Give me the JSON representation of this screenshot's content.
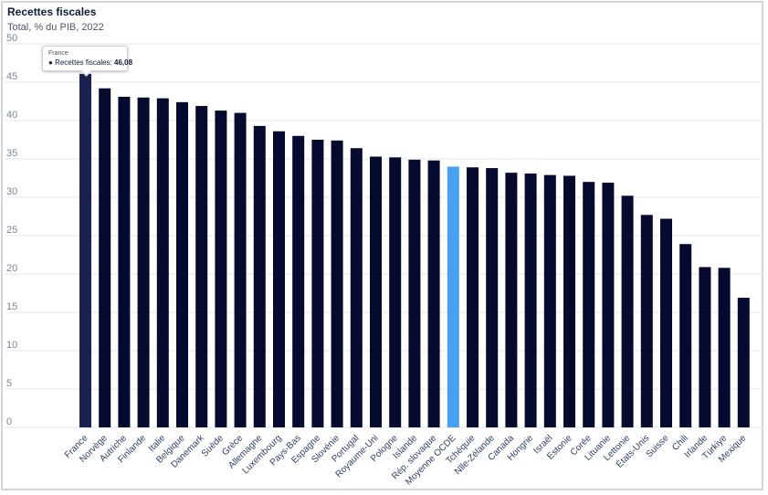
{
  "colors": {
    "bar": "#050a2e",
    "bar_highlight": "#1b2250",
    "bar_oecd": "#48a0f0",
    "grid": "#e3e6ea"
  },
  "tooltip": {
    "country": "France",
    "series_label": "Recettes fiscales:",
    "value": "46,08"
  },
  "chart_data": {
    "type": "bar",
    "title": "Recettes fiscales",
    "subtitle": "Total, % du PIB, 2022",
    "xlabel": "",
    "ylabel": "",
    "ylim": [
      0,
      50
    ],
    "yticks": [
      0,
      5,
      10,
      15,
      20,
      25,
      30,
      35,
      40,
      45,
      50
    ],
    "grid": true,
    "categories": [
      "France",
      "Norvège",
      "Autriche",
      "Finlande",
      "Italie",
      "Belgique",
      "Danemark",
      "Suède",
      "Grèce",
      "Allemagne",
      "Luxembourg",
      "Pays-Bas",
      "Espagne",
      "Slovénie",
      "Portugal",
      "Royaume-Uni",
      "Pologne",
      "Islande",
      "Rép. slovaque",
      "Moyenne OCDE",
      "Tchéquie",
      "Nlle-Zélande",
      "Canada",
      "Hongrie",
      "Israël",
      "Estonie",
      "Corée",
      "Lituanie",
      "Lettonie",
      "États-Unis",
      "Suisse",
      "Chili",
      "Irlande",
      "Türkiye",
      "Mexique"
    ],
    "values": [
      46.08,
      44.2,
      43.1,
      43.0,
      42.9,
      42.4,
      41.9,
      41.3,
      41.0,
      39.3,
      38.6,
      38.0,
      37.5,
      37.4,
      36.4,
      35.3,
      35.2,
      34.9,
      34.8,
      34.0,
      33.9,
      33.8,
      33.2,
      33.1,
      32.9,
      32.8,
      32.0,
      31.9,
      30.2,
      27.7,
      27.2,
      23.9,
      20.9,
      20.8,
      16.9
    ],
    "highlighted": "France",
    "reference": "Moyenne OCDE"
  }
}
